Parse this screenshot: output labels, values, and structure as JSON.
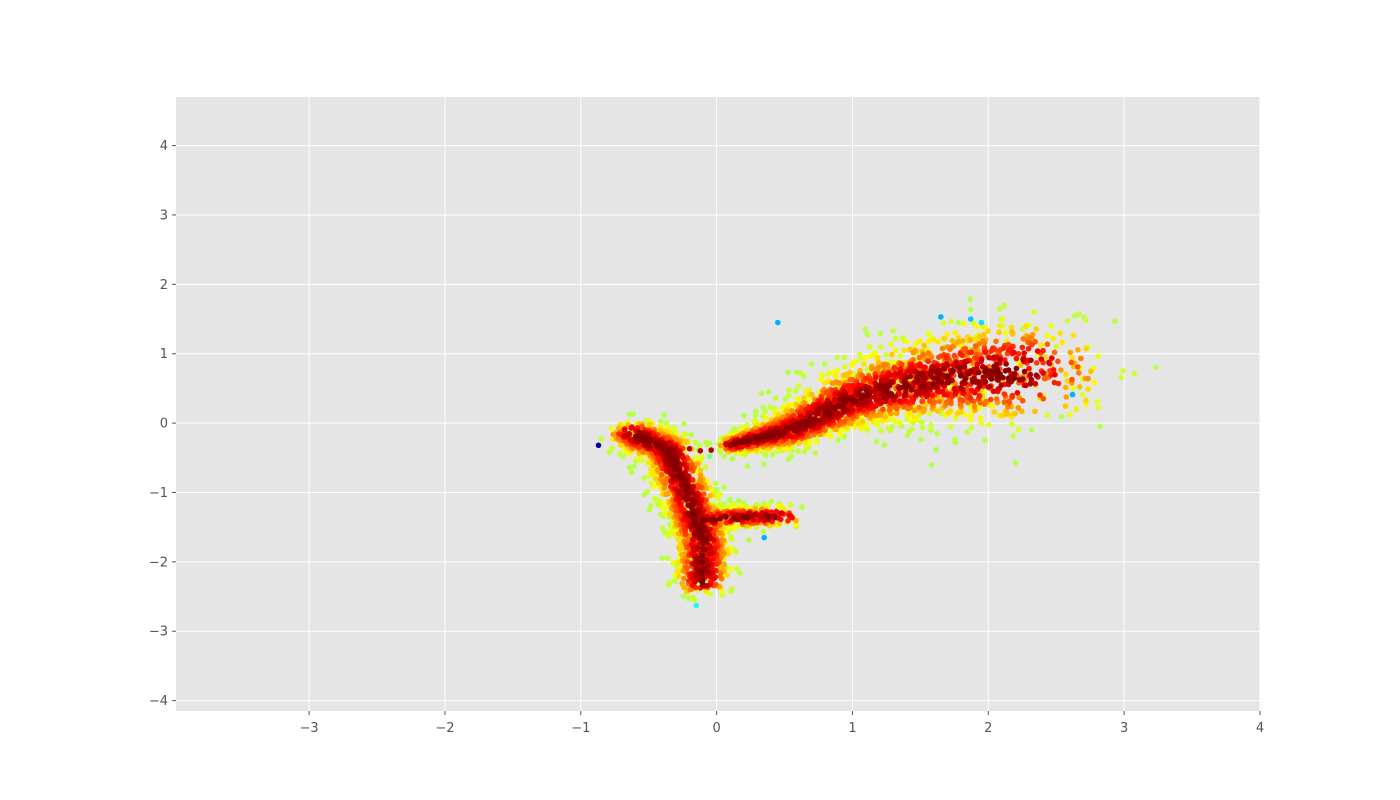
{
  "chart_data": {
    "type": "scatter",
    "title": "",
    "xlabel": "",
    "ylabel": "",
    "xlim": [
      -3.98,
      4.0
    ],
    "ylim": [
      -4.15,
      4.7
    ],
    "xticks": [
      -3,
      -2,
      -1,
      0,
      1,
      2,
      3,
      4
    ],
    "yticks": [
      -4,
      -3,
      -2,
      -1,
      0,
      1,
      2,
      3,
      4
    ],
    "xtick_labels": [
      "−3",
      "−2",
      "−1",
      "0",
      "1",
      "2",
      "3",
      "4"
    ],
    "ytick_labels": [
      "−4",
      "−3",
      "−2",
      "−1",
      "0",
      "1",
      "2",
      "3",
      "4"
    ],
    "grid": true,
    "legend": "none",
    "colormap": "jet (point density: blue = sparse, dark red = dense)",
    "colors": {
      "axes_background": "#e5e5e5",
      "grid": "#ffffff",
      "tick_text": "#555555",
      "dense": "#800000",
      "sparse": "#00008f"
    },
    "clusters": [
      {
        "name": "upper-right",
        "segment": [
          [
            0.1,
            -0.32
          ],
          [
            0.55,
            -0.1
          ],
          [
            1.0,
            0.35
          ],
          [
            1.6,
            0.65
          ],
          [
            2.3,
            0.75
          ]
        ],
        "spread": 0.28
      },
      {
        "name": "lower-left",
        "segment": [
          [
            -0.62,
            -0.15
          ],
          [
            -0.35,
            -0.4
          ],
          [
            -0.2,
            -1.1
          ],
          [
            -0.1,
            -1.7
          ],
          [
            -0.1,
            -2.3
          ]
        ],
        "spread": 0.12
      },
      {
        "name": "lower-right-arm",
        "segment": [
          [
            -0.15,
            -1.4
          ],
          [
            0.2,
            -1.35
          ],
          [
            0.5,
            -1.35
          ]
        ],
        "spread": 0.08
      }
    ],
    "outliers": [
      {
        "x": -0.87,
        "y": -0.32,
        "density": 0.02
      },
      {
        "x": 2.62,
        "y": 0.41,
        "density": 0.3
      },
      {
        "x": 0.45,
        "y": 1.45,
        "density": 0.3
      },
      {
        "x": 1.65,
        "y": 1.53,
        "density": 0.3
      },
      {
        "x": 1.87,
        "y": 1.5,
        "density": 0.32
      },
      {
        "x": 1.95,
        "y": 1.45,
        "density": 0.35
      },
      {
        "x": -0.05,
        "y": -0.48,
        "density": 0.5
      },
      {
        "x": 0.35,
        "y": -1.65,
        "density": 0.3
      },
      {
        "x": -0.15,
        "y": -2.63,
        "density": 0.4
      },
      {
        "x": -0.2,
        "y": -0.37,
        "density": 0.95
      },
      {
        "x": -0.12,
        "y": -0.4,
        "density": 0.95
      },
      {
        "x": -0.04,
        "y": -0.39,
        "density": 0.95
      }
    ]
  }
}
